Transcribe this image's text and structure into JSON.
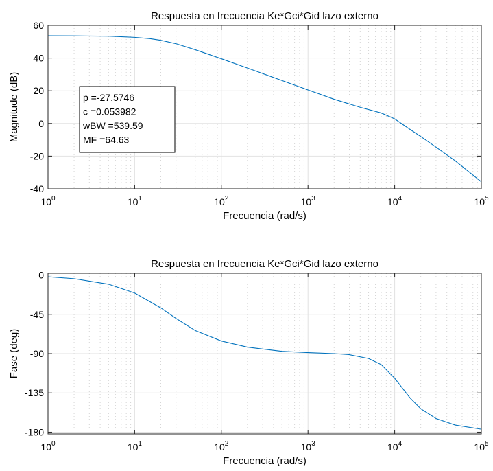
{
  "chart_data": [
    {
      "type": "line",
      "title": "Respuesta en frecuencia Ke*Gci*Gid lazo externo",
      "xlabel": "Frecuencia  (rad/s)",
      "ylabel": "Magnitude (dB)",
      "xscale": "log",
      "xlim": [
        1,
        100000
      ],
      "ylim": [
        -40,
        60
      ],
      "xticks": [
        1,
        10,
        100,
        1000,
        10000,
        100000
      ],
      "xtick_labels": [
        {
          "base": "10",
          "exp": "0"
        },
        {
          "base": "10",
          "exp": "1"
        },
        {
          "base": "10",
          "exp": "2"
        },
        {
          "base": "10",
          "exp": "3"
        },
        {
          "base": "10",
          "exp": "4"
        },
        {
          "base": "10",
          "exp": "5"
        }
      ],
      "yticks": [
        60,
        40,
        20,
        0,
        -20,
        -40
      ],
      "ytick_labels": [
        "60",
        "40",
        "20",
        "0",
        "-20",
        "-40"
      ],
      "grid": true,
      "line_color": "#0072bd",
      "series": [
        {
          "x": [
            1,
            2,
            5,
            10,
            15,
            20,
            30,
            50,
            100,
            200,
            500,
            1000,
            2000,
            4000,
            7000,
            10000,
            15000,
            20000,
            30000,
            50000,
            100000
          ],
          "values": [
            53.7,
            53.6,
            53.4,
            52.7,
            51.9,
            50.9,
            48.8,
            45.1,
            39.6,
            33.9,
            26.3,
            20.5,
            14.8,
            9.9,
            6.4,
            2.8,
            -3.6,
            -8.0,
            -14.5,
            -22.9,
            -35.7
          ]
        }
      ],
      "annotation_lines": [
        "p =-27.5746",
        "c =0.053982",
        "wBW =539.59",
        "MF =64.63"
      ]
    },
    {
      "type": "line",
      "title": "Respuesta en frecuencia Ke*Gci*Gid lazo externo",
      "xlabel": "Frecuencia  (rad/s)",
      "ylabel": "Fase (deg)",
      "xscale": "log",
      "xlim": [
        1,
        100000
      ],
      "ylim": [
        -182,
        2
      ],
      "xticks": [
        1,
        10,
        100,
        1000,
        10000,
        100000
      ],
      "xtick_labels": [
        {
          "base": "10",
          "exp": "0"
        },
        {
          "base": "10",
          "exp": "1"
        },
        {
          "base": "10",
          "exp": "2"
        },
        {
          "base": "10",
          "exp": "3"
        },
        {
          "base": "10",
          "exp": "4"
        },
        {
          "base": "10",
          "exp": "5"
        }
      ],
      "yticks": [
        0,
        -45,
        -90,
        -135,
        -180
      ],
      "ytick_labels": [
        "0",
        "-45",
        "-90",
        "-135",
        "-180"
      ],
      "grid": true,
      "line_color": "#0072bd",
      "series": [
        {
          "x": [
            1,
            2,
            5,
            10,
            20,
            30,
            50,
            100,
            200,
            500,
            1000,
            2000,
            3000,
            5000,
            7000,
            10000,
            15000,
            20000,
            30000,
            50000,
            100000
          ],
          "values": [
            -2.0,
            -4.2,
            -10.5,
            -20.6,
            -37.6,
            -49.7,
            -63.6,
            -75.6,
            -82.6,
            -87.4,
            -88.9,
            -90.0,
            -91.2,
            -95.6,
            -102.6,
            -118.2,
            -140.6,
            -153.2,
            -164.3,
            -171.8,
            -176.6
          ]
        }
      ]
    }
  ]
}
